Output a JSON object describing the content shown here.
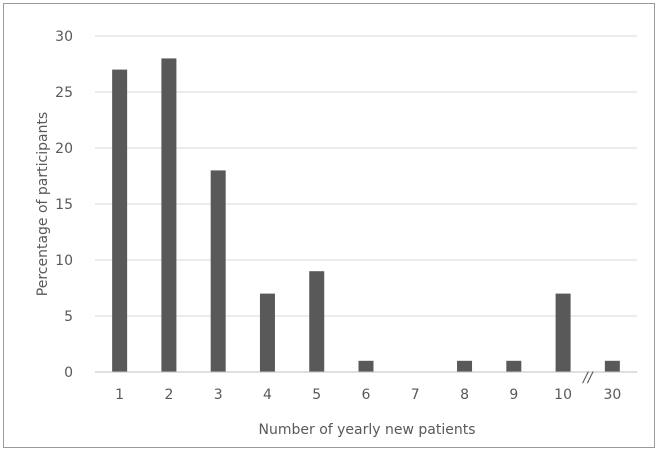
{
  "chart_data": {
    "type": "bar",
    "categories": [
      "1",
      "2",
      "3",
      "4",
      "5",
      "6",
      "7",
      "8",
      "9",
      "10",
      "30"
    ],
    "values": [
      27,
      28,
      18,
      7,
      9,
      1,
      0,
      1,
      1,
      7,
      1
    ],
    "title": "",
    "xlabel": "Number of yearly new patients",
    "ylabel": "Percentage of participants",
    "ylim": [
      0,
      30
    ],
    "yticks": [
      "0",
      "5",
      "10",
      "15",
      "20",
      "25",
      "30"
    ],
    "grid": true,
    "axis_break": "between 10 and 30",
    "axis_break_label": "//",
    "colors": {
      "bar": "#595959",
      "grid": "#d9d9d9",
      "text": "#595959",
      "axis": "#bfbfbf"
    }
  }
}
